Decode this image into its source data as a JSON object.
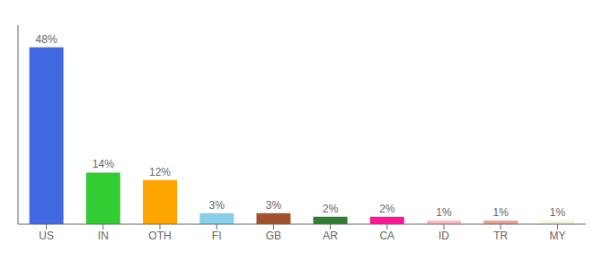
{
  "chart_data": {
    "type": "bar",
    "categories": [
      "US",
      "IN",
      "OTH",
      "FI",
      "GB",
      "AR",
      "CA",
      "ID",
      "TR",
      "MY"
    ],
    "values": [
      48,
      14,
      12,
      3,
      3,
      2,
      2,
      1,
      1,
      1
    ],
    "value_labels": [
      "48%",
      "14%",
      "12%",
      "3%",
      "3%",
      "2%",
      "2%",
      "1%",
      "1%",
      "1%"
    ],
    "colors": [
      "#4169E1",
      "#32CD32",
      "#FFA500",
      "#87CEEB",
      "#A0522D",
      "#2E7D32",
      "#FF1493",
      "#FFB6C1",
      "#E8A090",
      "#F5F5DC"
    ],
    "ylim": [
      0,
      54
    ],
    "data_labels": true,
    "grid": false,
    "tick_labels": "x"
  }
}
